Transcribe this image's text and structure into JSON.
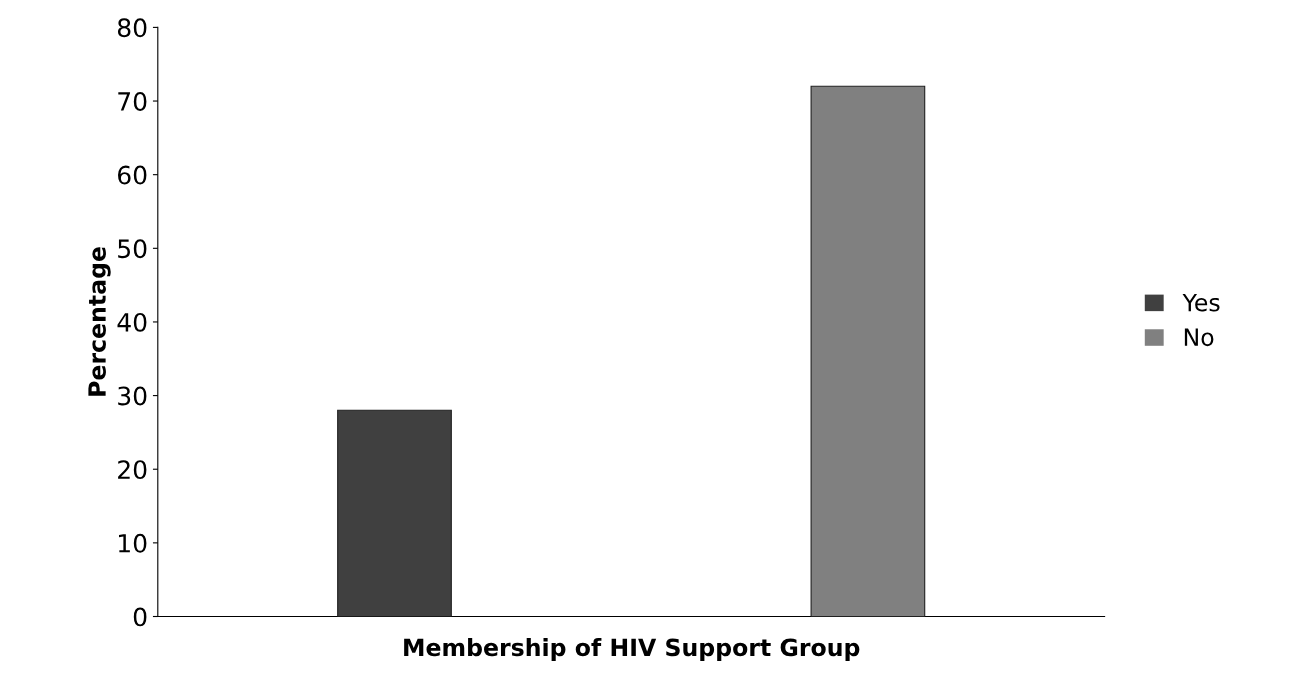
{
  "chart_data": {
    "type": "bar",
    "xlabel": "Membership of HIV Support Group",
    "ylabel": "Percentage",
    "categories": [
      null
    ],
    "series": [
      {
        "name": "Yes",
        "color": "#404040",
        "values": [
          28
        ]
      },
      {
        "name": "No",
        "color": "#808080",
        "values": [
          72
        ]
      }
    ],
    "ylim": [
      0,
      80
    ],
    "yticks": [
      0,
      10,
      20,
      30,
      40,
      50,
      60,
      70,
      80
    ],
    "grid": false,
    "legend": "right"
  }
}
